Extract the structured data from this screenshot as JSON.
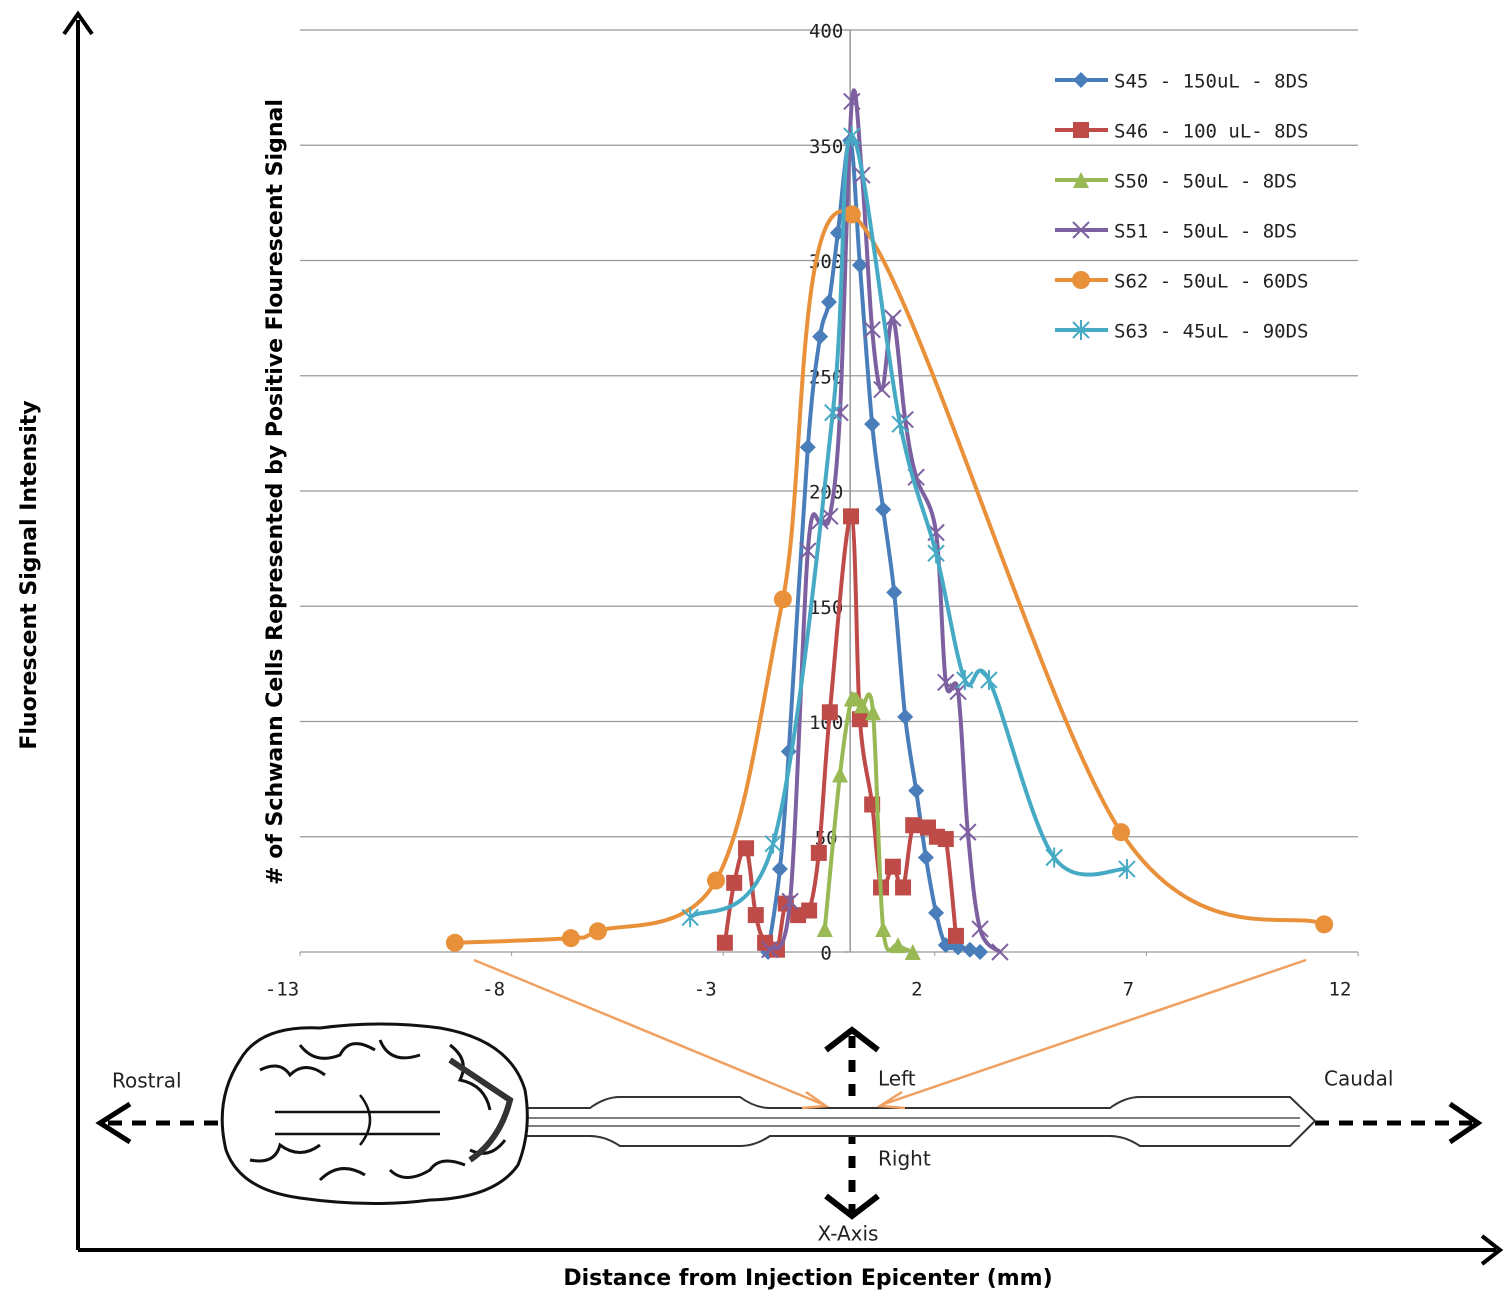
{
  "chart_data": {
    "type": "line",
    "y_label": "# of Schwann Cells Represented by Positive Flourescent Signal",
    "outer_y_label": "Fluorescent Signal Intensity",
    "outer_x_label": "Distance from Injection Epicenter (mm)",
    "diagram_labels": {
      "rostral": "Rostral",
      "caudal": "Caudal",
      "left": "Left",
      "right": "Right",
      "axis": "X-Axis"
    },
    "xlim": [
      -13,
      12
    ],
    "xticks": [
      -13,
      -8,
      -3,
      2,
      7,
      12
    ],
    "ylim": [
      0,
      400
    ],
    "yticks": [
      0,
      50,
      100,
      150,
      200,
      250,
      300,
      350,
      400
    ],
    "grid": true,
    "smooth": true,
    "series": [
      {
        "name": "S45 - 150uL - 8DS",
        "color": "#4a7ebb",
        "marker": "diamond",
        "x": [
          -1.94,
          -1.66,
          -1.45,
          -1.0,
          -0.71,
          -0.5,
          -0.29,
          0,
          0.23,
          0.52,
          0.78,
          1.04,
          1.3,
          1.56,
          1.79,
          2.03,
          2.26,
          2.55,
          2.83,
          3.07
        ],
        "values": [
          0,
          36,
          87,
          219,
          267,
          282,
          312,
          352,
          298,
          229,
          192,
          156,
          102,
          70,
          41,
          17,
          3,
          2,
          1,
          0
        ]
      },
      {
        "name": "S46 - 100 uL- 8DS",
        "color": "#be4b48",
        "marker": "square",
        "x": [
          -2.96,
          -2.74,
          -2.46,
          -2.23,
          -2.01,
          -1.73,
          -1.52,
          -1.23,
          -0.97,
          -0.74,
          -0.48,
          0.02,
          0.23,
          0.52,
          0.73,
          1.01,
          1.25,
          1.49,
          1.84,
          2.05,
          2.26,
          2.5
        ],
        "values": [
          4,
          30,
          45,
          16,
          4,
          1,
          21,
          16,
          18,
          43,
          104,
          189,
          101,
          64,
          28,
          37,
          28,
          55,
          54,
          50,
          49,
          7
        ]
      },
      {
        "name": "S50 - 50uL - 8DS",
        "color": "#98b954",
        "marker": "triangle",
        "x": [
          -0.6,
          -0.24,
          0.04,
          0.28,
          0.54,
          0.78,
          1.13,
          1.48
        ],
        "values": [
          10,
          77,
          110,
          107,
          104,
          10,
          3,
          0
        ]
      },
      {
        "name": "S51 - 50uL - 8DS",
        "color": "#7d60a0",
        "marker": "x",
        "x": [
          -1.9,
          -1.42,
          -1.0,
          -0.71,
          -0.48,
          -0.24,
          0.04,
          0.28,
          0.52,
          0.75,
          1.01,
          1.3,
          1.56,
          2.03,
          2.26,
          2.55,
          2.78,
          3.07,
          3.54
        ],
        "values": [
          1,
          22,
          174,
          187,
          189,
          234,
          369,
          337,
          270,
          244,
          275,
          231,
          206,
          182,
          117,
          113,
          52,
          10,
          0
        ]
      },
      {
        "name": "S62 - 50uL - 60DS",
        "color": "#e8913a",
        "marker": "circle",
        "x": [
          -9.34,
          -6.6,
          -5.96,
          -3.17,
          -1.59,
          0.04,
          6.4,
          11.2
        ],
        "values": [
          4,
          6,
          9,
          31,
          153,
          320,
          52,
          12
        ]
      },
      {
        "name": "S63 - 45uL - 90DS",
        "color": "#46aac5",
        "marker": "asterisk",
        "x": [
          -3.78,
          -1.82,
          -0.41,
          0.04,
          1.18,
          2.03,
          2.71,
          3.28,
          4.82,
          6.54
        ],
        "values": [
          15,
          47,
          234,
          354,
          229,
          173,
          118,
          118,
          41,
          36
        ]
      }
    ]
  }
}
